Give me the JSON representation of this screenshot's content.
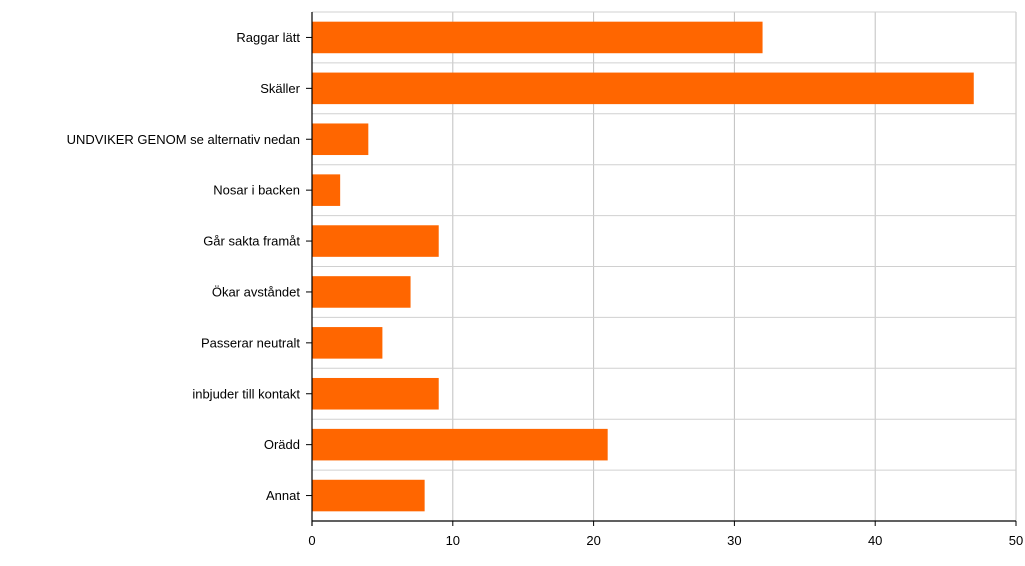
{
  "chart_data": {
    "type": "bar",
    "orientation": "horizontal",
    "categories": [
      "Raggar lätt",
      "Skäller",
      "UNDVIKER GENOM se alternativ nedan",
      "Nosar i backen",
      "Går sakta framåt",
      "Ökar avståndet",
      "Passerar neutralt",
      "inbjuder till kontakt",
      "Orädd",
      "Annat"
    ],
    "values": [
      32,
      47,
      4,
      2,
      9,
      7,
      5,
      9,
      21,
      8
    ],
    "xlim": [
      0,
      50
    ],
    "xticks": [
      0,
      10,
      20,
      30,
      40,
      50
    ],
    "title": "",
    "xlabel": "",
    "ylabel": "",
    "grid": true,
    "legend": "none",
    "bar_color": "#FF6600",
    "grid_color": "#C0C0C0"
  }
}
